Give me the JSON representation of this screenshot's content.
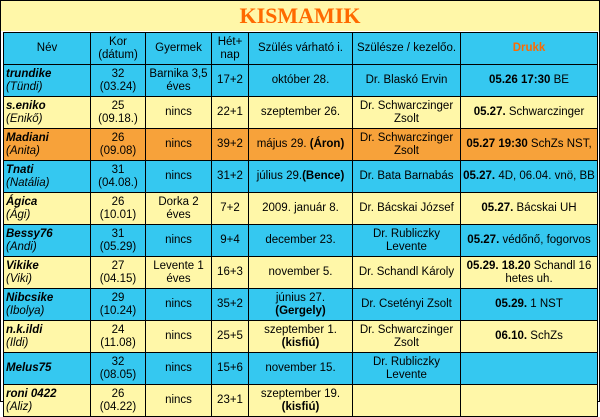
{
  "title": "KISMAMIK",
  "headers": {
    "nev": "Név",
    "kor": "Kor (dátum)",
    "gyermek": "Gyermek",
    "het": "Hét+ nap",
    "szules": "Szülés várható i.",
    "szulesze": "Szülésze / kezelőo.",
    "drukk": "Drukk"
  },
  "rows": [
    {
      "nick": "trundike",
      "name": "(Tündi)",
      "kor": "32",
      "datum": "(03.24)",
      "gyermek": "Barnika 3,5 éves",
      "het": "17+2",
      "szules": "október 28.",
      "szules_b": "",
      "doc": "Dr. Blaskó Ervin",
      "drukk_b": "05.26 17:30",
      "drukk": " BE"
    },
    {
      "nick": "s.eniko",
      "name": "(Enikő)",
      "kor": "25",
      "datum": "(09.18.)",
      "gyermek": "nincs",
      "het": "22+1",
      "szules": "szeptember 26.",
      "szules_b": "",
      "doc": "Dr. Schwarczinger Zsolt",
      "drukk_b": "05.27.",
      "drukk": " Schwarczinger"
    },
    {
      "nick": "Madiani",
      "name": "(Anita)",
      "kor": "26",
      "datum": "(09.08)",
      "gyermek": "nincs",
      "het": "39+2",
      "szules": "május 29. ",
      "szules_b": "(Áron)",
      "doc": "Dr. Schwarczinger Zsolt",
      "drukk_b": "05.27 19:30",
      "drukk": " SchZs NST,"
    },
    {
      "nick": "Tnati",
      "name": "(Natália)",
      "kor": "31",
      "datum": "(04.08.)",
      "gyermek": "nincs",
      "het": "31+2",
      "szules": "július 29.",
      "szules_b": "(Bence)",
      "doc": "Dr. Bata Barnabás",
      "drukk_b": "05.27.",
      "drukk": " 4D, 06.04. vnö, BB"
    },
    {
      "nick": "Ágica",
      "name": "(Ági)",
      "kor": "26",
      "datum": "(10.01)",
      "gyermek": "Dorka 2 éves",
      "het": "7+2",
      "szules": "2009. január 8.",
      "szules_b": "",
      "doc": "Dr. Bácskai József",
      "drukk_b": "05.27.",
      "drukk": " Bácskai UH"
    },
    {
      "nick": "Bessy76",
      "name": "(Andi)",
      "kor": "31",
      "datum": "(05.29)",
      "gyermek": "nincs",
      "het": "9+4",
      "szules": "december 23.",
      "szules_b": "",
      "doc": "Dr. Rubliczky Levente",
      "drukk_b": "05.27.",
      "drukk": " védőnő, fogorvos"
    },
    {
      "nick": "Vikike",
      "name": "(Viki)",
      "kor": "27",
      "datum": "(04.15)",
      "gyermek": "Levente 1 éves",
      "het": "16+3",
      "szules": "november 5.",
      "szules_b": "",
      "doc": "Dr. Schandl Károly",
      "drukk_b": "05.29. 18.20",
      "drukk": " Schandl 16 hetes uh."
    },
    {
      "nick": "Nibcsike",
      "name": "(Ibolya)",
      "kor": "29",
      "datum": "(10.24)",
      "gyermek": "nincs",
      "het": "35+2",
      "szules": "június 27.",
      "szules_b": "(Gergely)",
      "doc": "Dr. Csetényi Zsolt",
      "drukk_b": "05.29.",
      "drukk": " 1 NST"
    },
    {
      "nick": "n.k.ildi",
      "name": "(Ildi)",
      "kor": "24",
      "datum": "(11.08)",
      "gyermek": "nincs",
      "het": "25+5",
      "szules": "szeptember 1.",
      "szules_b": "(kisfiú)",
      "doc": "Dr. Schwarczinger Zsolt",
      "drukk_b": "06.10.",
      "drukk": " SchZs"
    },
    {
      "nick": "Melus75",
      "name": "",
      "kor": "32",
      "datum": "(08.05)",
      "gyermek": "nincs",
      "het": "15+6",
      "szules": "november 15.",
      "szules_b": "",
      "doc": "Dr. Rubliczky Levente",
      "drukk_b": "",
      "drukk": ""
    },
    {
      "nick": "roni 0422",
      "name": "(Aliz)",
      "kor": "26",
      "datum": "(04.22)",
      "gyermek": "nincs",
      "het": "23+1",
      "szules": "szeptember 19.",
      "szules_b": "(kisfiú)",
      "doc": "",
      "drukk_b": "",
      "drukk": ""
    }
  ]
}
